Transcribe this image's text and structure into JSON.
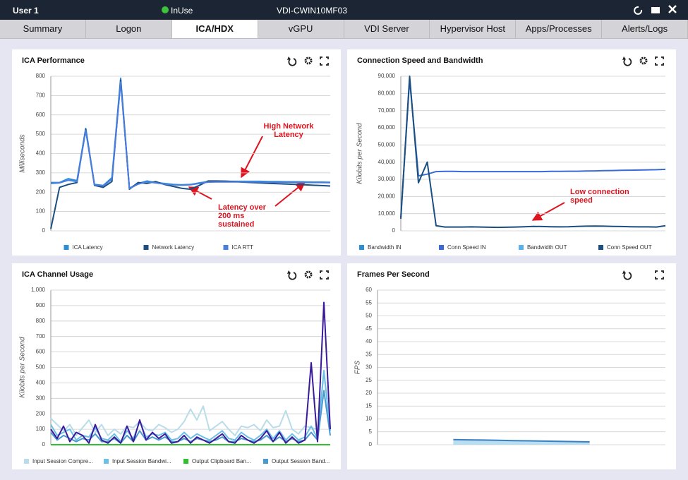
{
  "header": {
    "user": "User 1",
    "status": "InUse",
    "machine": "VDI-CWIN10MF03"
  },
  "tabs": [
    "Summary",
    "Logon",
    "ICA/HDX",
    "vGPU",
    "VDI Server",
    "Hypervisor Host",
    "Apps/Processes",
    "Alerts/Logs"
  ],
  "chart_data": [
    {
      "type": "line",
      "title": "ICA Performance",
      "y_label": "Milliseconds",
      "ylim": [
        0,
        800
      ],
      "yticks": [
        0,
        100,
        200,
        300,
        400,
        500,
        600,
        700,
        800
      ],
      "grid": true,
      "annotations": [
        "High Network Latency",
        "Latency over 200 ms sustained"
      ],
      "series": [
        {
          "name": "ICA Latency",
          "color": "#2a8fd6",
          "values": [
            250,
            250,
            270,
            260,
            530,
            240,
            235,
            275,
            790,
            220,
            245,
            258,
            250,
            245,
            240,
            238,
            240,
            248,
            255,
            256,
            256,
            256,
            256,
            256,
            256,
            255,
            255,
            254,
            254,
            253,
            252,
            252,
            251
          ]
        },
        {
          "name": "Network Latency",
          "color": "#1a4f80",
          "values": [
            10,
            225,
            240,
            250,
            525,
            235,
            225,
            255,
            780,
            215,
            250,
            245,
            255,
            240,
            230,
            220,
            215,
            235,
            258,
            258,
            257,
            255,
            252,
            250,
            248,
            246,
            244,
            242,
            240,
            238,
            236,
            234,
            232
          ]
        },
        {
          "name": "ICA RTT",
          "color": "#4a7de0",
          "values": [
            245,
            248,
            262,
            255,
            520,
            238,
            232,
            268,
            770,
            218,
            242,
            254,
            248,
            242,
            238,
            236,
            238,
            245,
            252,
            253,
            253,
            253,
            253,
            253,
            253,
            252,
            252,
            251,
            251,
            250,
            250,
            250,
            249
          ]
        }
      ]
    },
    {
      "type": "line",
      "title": "Connection Speed and Bandwidth",
      "y_label": "Kilobits per Second",
      "ylim": [
        0,
        90000
      ],
      "yticks": [
        0,
        {
          "value": 10000,
          "label": "10,000"
        },
        {
          "value": 20000,
          "label": "20,000"
        },
        {
          "value": 30000,
          "label": "30,000"
        },
        {
          "value": 40000,
          "label": "40,000"
        },
        {
          "value": 50000,
          "label": "50,000"
        },
        {
          "value": 60000,
          "label": "60,000"
        },
        {
          "value": 70000,
          "label": "70,000"
        },
        {
          "value": 80000,
          "label": "80,000"
        },
        {
          "value": 90000,
          "label": "90,000"
        }
      ],
      "grid": true,
      "annotations": [
        "Low connection speed"
      ],
      "series": [
        {
          "name": "Bandwidth IN",
          "color": "#2a8fd6",
          "values": [
            null,
            null,
            null,
            null,
            null,
            null,
            null,
            null,
            null,
            null,
            null,
            null,
            null,
            null,
            null,
            null,
            null,
            null,
            null,
            null,
            null,
            null,
            null,
            null,
            null,
            null,
            null,
            null,
            null,
            null,
            null
          ]
        },
        {
          "name": "Conn Speed IN",
          "color": "#3a6ad8",
          "values": [
            8000,
            88000,
            32000,
            33000,
            34500,
            34600,
            34600,
            34500,
            34500,
            34500,
            34500,
            34500,
            34500,
            34500,
            34500,
            34500,
            34500,
            34600,
            34600,
            34700,
            34700,
            34800,
            34900,
            35000,
            35100,
            35200,
            35300,
            35400,
            35500,
            35600,
            35800
          ]
        },
        {
          "name": "Bandwidth OUT",
          "color": "#5ab0e8",
          "values": [
            null,
            null,
            null,
            null,
            null,
            null,
            null,
            null,
            null,
            null,
            null,
            null,
            null,
            null,
            null,
            null,
            null,
            null,
            null,
            null,
            null,
            null,
            null,
            null,
            null,
            null,
            null,
            null,
            null,
            null,
            null
          ]
        },
        {
          "name": "Conn Speed OUT",
          "color": "#1a4f80",
          "values": [
            7000,
            90000,
            28000,
            40000,
            3000,
            2200,
            2200,
            2200,
            2300,
            2200,
            2100,
            2000,
            2100,
            2200,
            2400,
            2600,
            2500,
            2400,
            2300,
            2400,
            2600,
            2700,
            2800,
            2700,
            2600,
            2500,
            2400,
            2300,
            2300,
            2200,
            3000
          ]
        }
      ]
    },
    {
      "type": "line",
      "title": "ICA Channel Usage",
      "y_label": "Kilobits per Second",
      "ylim": [
        0,
        1000
      ],
      "yticks": [
        0,
        100,
        200,
        300,
        400,
        500,
        600,
        700,
        800,
        900,
        {
          "value": 1000,
          "label": "1,000"
        }
      ],
      "grid": true,
      "series": [
        {
          "name": "Input Session Compre...",
          "color": "#b8dcea",
          "values": [
            170,
            130,
            90,
            130,
            60,
            110,
            160,
            80,
            130,
            60,
            100,
            70,
            120,
            110,
            150,
            100,
            90,
            130,
            110,
            80,
            100,
            150,
            230,
            160,
            250,
            90,
            120,
            150,
            100,
            60,
            120,
            110,
            130,
            90,
            160,
            110,
            120,
            220,
            100,
            70,
            120,
            110,
            100,
            460,
            110
          ]
        },
        {
          "name": "Input Session Bandwi...",
          "color": "#6cc0e8",
          "values": [
            130,
            60,
            80,
            100,
            30,
            60,
            50,
            110,
            40,
            30,
            70,
            20,
            90,
            40,
            150,
            50,
            70,
            60,
            80,
            30,
            40,
            80,
            40,
            70,
            50,
            30,
            60,
            90,
            40,
            30,
            80,
            50,
            30,
            60,
            100,
            40,
            90,
            30,
            70,
            30,
            50,
            120,
            40,
            480,
            90
          ]
        },
        {
          "name": "Output Clipboard Ban...",
          "color": "#2ec02e",
          "values": [
            0,
            0,
            0,
            0,
            0,
            0,
            0,
            0,
            0,
            0,
            0,
            0,
            0,
            0,
            0,
            0,
            0,
            0,
            0,
            0,
            0,
            0,
            0,
            0,
            0,
            0,
            0,
            0,
            0,
            0,
            0,
            0,
            0,
            0,
            0,
            0,
            0,
            0,
            0,
            0,
            0,
            0,
            0,
            0,
            0
          ]
        },
        {
          "name": "Output Session Band...",
          "color": "#4a9ad0",
          "values": [
            80,
            30,
            60,
            40,
            20,
            40,
            30,
            70,
            20,
            20,
            40,
            10,
            60,
            20,
            90,
            30,
            50,
            30,
            50,
            20,
            20,
            40,
            20,
            40,
            30,
            20,
            30,
            50,
            20,
            20,
            40,
            30,
            20,
            30,
            60,
            20,
            50,
            20,
            40,
            20,
            30,
            80,
            30,
            350,
            60
          ]
        },
        {
          "color": "#3a1a9a",
          "values": [
            100,
            40,
            120,
            20,
            80,
            60,
            10,
            130,
            30,
            10,
            50,
            10,
            120,
            20,
            160,
            30,
            80,
            40,
            70,
            10,
            20,
            60,
            10,
            50,
            30,
            10,
            40,
            70,
            20,
            10,
            60,
            30,
            10,
            40,
            90,
            20,
            80,
            10,
            50,
            10,
            30,
            530,
            20,
            920,
            100
          ]
        }
      ]
    },
    {
      "type": "area",
      "title": "Frames Per Second",
      "y_label": "FPS",
      "ylim": [
        0,
        60
      ],
      "yticks": [
        0,
        5,
        10,
        15,
        20,
        25,
        30,
        35,
        40,
        45,
        50,
        55,
        60
      ],
      "grid": true,
      "series": [
        {
          "color": "#3a80c0",
          "values": [
            null,
            null,
            null,
            null,
            null,
            2,
            1.9,
            1.8,
            1.7,
            1.6,
            1.5,
            1.4,
            1.3,
            1.2,
            1.1,
            null,
            null,
            null,
            null,
            null
          ]
        }
      ]
    }
  ]
}
